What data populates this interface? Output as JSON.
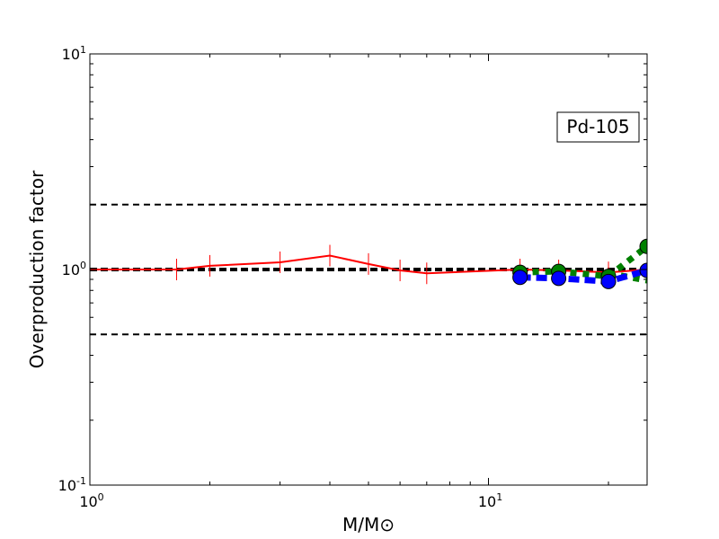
{
  "chart_data": {
    "type": "line",
    "xscale": "log",
    "yscale": "log",
    "xlim": [
      1,
      25
    ],
    "ylim": [
      0.1,
      10
    ],
    "xlabel": "M/M⊙",
    "ylabel": "Overproduction factor",
    "grid": false,
    "annotation": "Pd-105",
    "annotation_position": "top-right",
    "x_ticks": [
      {
        "value": 1,
        "base": "10",
        "exp": "0"
      },
      {
        "value": 10,
        "base": "10",
        "exp": "1"
      }
    ],
    "y_ticks": [
      {
        "value": 0.1,
        "base": "10",
        "exp": "-1"
      },
      {
        "value": 1,
        "base": "10",
        "exp": "0"
      },
      {
        "value": 10,
        "base": "10",
        "exp": "1"
      }
    ],
    "reference_lines": [
      {
        "y": 2.0,
        "style": "dashed",
        "color": "#000000"
      },
      {
        "y": 1.0,
        "style": "dashed-thick",
        "color": "#000000"
      },
      {
        "y": 0.5,
        "style": "dashed",
        "color": "#000000"
      }
    ],
    "series": [
      {
        "style": "solid",
        "color": "#ff0000",
        "marker": "vline",
        "x": [
          1.0,
          1.65,
          2.0,
          3.0,
          4.0,
          5.0,
          6.0,
          7.0,
          12.0,
          15.0,
          20.0,
          25.0
        ],
        "y": [
          1.0,
          1.0,
          1.04,
          1.08,
          1.16,
          1.06,
          0.99,
          0.96,
          1.0,
          0.99,
          0.97,
          1.0
        ]
      },
      {
        "style": "dotted-thick",
        "color": "#008000",
        "marker": "circle",
        "x": [
          12.0,
          15.0,
          20.0,
          25.0
        ],
        "y": [
          0.97,
          0.98,
          0.93,
          1.28
        ]
      },
      {
        "style": "dotted-thick",
        "color": "#008000",
        "marker": "none",
        "x": [
          20.0,
          25.0
        ],
        "y": [
          0.96,
          0.89
        ]
      },
      {
        "style": "dashed-thick",
        "color": "#0000ff",
        "marker": "circle",
        "x": [
          12.0,
          15.0,
          20.0,
          25.0
        ],
        "y": [
          0.92,
          0.91,
          0.88,
          0.99
        ]
      }
    ]
  }
}
